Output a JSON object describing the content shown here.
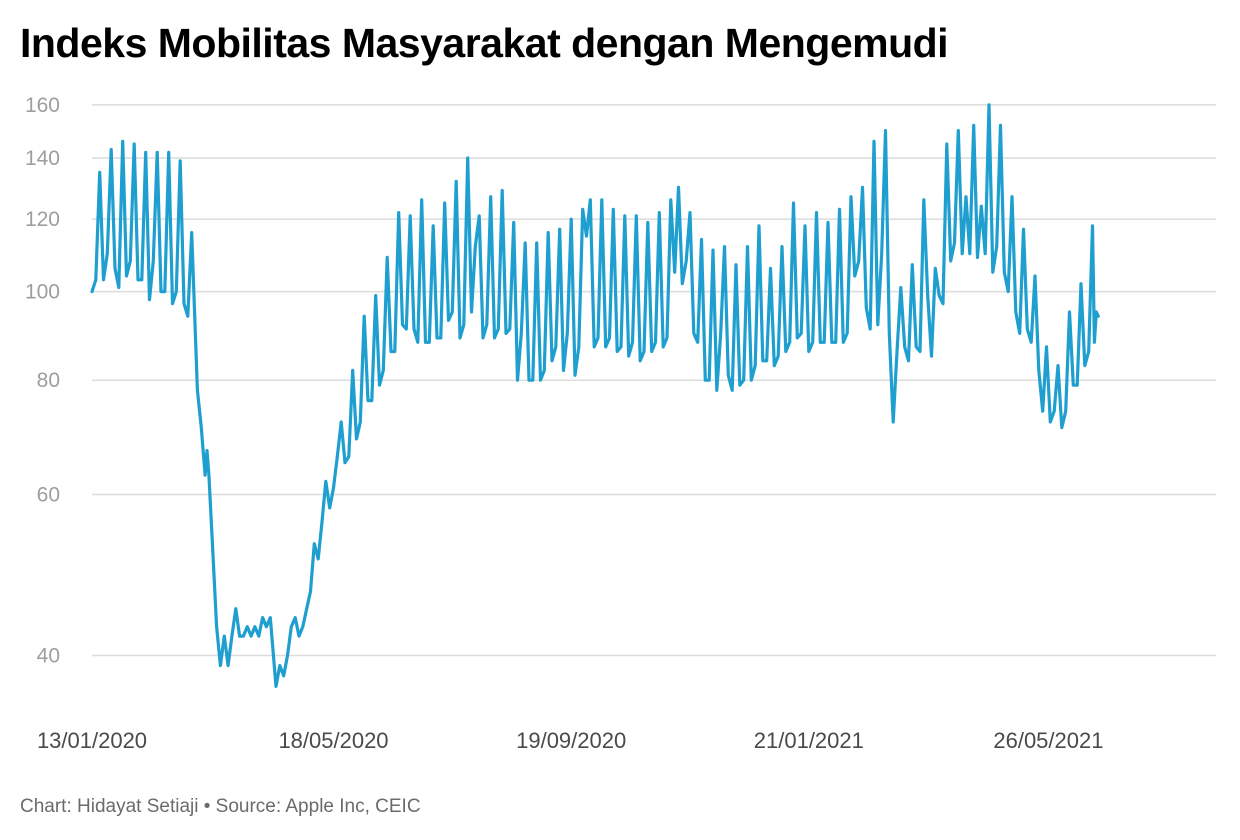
{
  "chart_data": {
    "type": "line",
    "title": "Indeks Mobilitas Masyarakat dengan Mengemudi",
    "footer": "Chart: Hidayat Setiaji • Source: Apple Inc, CEIC",
    "xlabel": "",
    "ylabel": "",
    "y_scale": "log",
    "ylim": [
      34,
      162
    ],
    "y_ticks": [
      40,
      60,
      80,
      100,
      120,
      140,
      160
    ],
    "x_range": [
      "2020-01-13",
      "2021-08-11"
    ],
    "x_ticks": [
      {
        "date": "2020-01-13",
        "label": "13/01/2020"
      },
      {
        "date": "2020-05-18",
        "label": "18/05/2020"
      },
      {
        "date": "2020-09-19",
        "label": "19/09/2020"
      },
      {
        "date": "2021-01-21",
        "label": "21/01/2021"
      },
      {
        "date": "2021-05-26",
        "label": "26/05/2021"
      }
    ],
    "grid": true,
    "legend": "none",
    "color": "#1f9fcf",
    "series": [
      {
        "name": "",
        "points": [
          [
            "2020-01-13",
            100
          ],
          [
            "2020-01-15",
            103
          ],
          [
            "2020-01-17",
            135
          ],
          [
            "2020-01-19",
            103
          ],
          [
            "2020-01-21",
            110
          ],
          [
            "2020-01-23",
            143
          ],
          [
            "2020-01-25",
            106
          ],
          [
            "2020-01-27",
            101
          ],
          [
            "2020-01-29",
            146
          ],
          [
            "2020-01-31",
            104
          ],
          [
            "2020-02-02",
            108
          ],
          [
            "2020-02-04",
            145
          ],
          [
            "2020-02-06",
            103
          ],
          [
            "2020-02-08",
            103
          ],
          [
            "2020-02-10",
            142
          ],
          [
            "2020-02-12",
            98
          ],
          [
            "2020-02-14",
            108
          ],
          [
            "2020-02-16",
            142
          ],
          [
            "2020-02-18",
            100
          ],
          [
            "2020-02-20",
            100
          ],
          [
            "2020-02-22",
            142
          ],
          [
            "2020-02-24",
            97
          ],
          [
            "2020-02-26",
            100
          ],
          [
            "2020-02-28",
            139
          ],
          [
            "2020-03-01",
            97
          ],
          [
            "2020-03-03",
            94
          ],
          [
            "2020-03-05",
            116
          ],
          [
            "2020-03-08",
            78
          ],
          [
            "2020-03-10",
            71
          ],
          [
            "2020-03-12",
            63
          ],
          [
            "2020-03-13",
            67
          ],
          [
            "2020-03-14",
            63
          ],
          [
            "2020-03-16",
            52
          ],
          [
            "2020-03-18",
            43
          ],
          [
            "2020-03-20",
            39
          ],
          [
            "2020-03-22",
            42
          ],
          [
            "2020-03-24",
            39
          ],
          [
            "2020-03-26",
            42
          ],
          [
            "2020-03-28",
            45
          ],
          [
            "2020-03-30",
            42
          ],
          [
            "2020-04-01",
            42
          ],
          [
            "2020-04-03",
            43
          ],
          [
            "2020-04-05",
            42
          ],
          [
            "2020-04-07",
            43
          ],
          [
            "2020-04-09",
            42
          ],
          [
            "2020-04-11",
            44
          ],
          [
            "2020-04-13",
            43
          ],
          [
            "2020-04-15",
            44
          ],
          [
            "2020-04-18",
            37
          ],
          [
            "2020-04-20",
            39
          ],
          [
            "2020-04-22",
            38
          ],
          [
            "2020-04-24",
            40
          ],
          [
            "2020-04-26",
            43
          ],
          [
            "2020-04-28",
            44
          ],
          [
            "2020-04-30",
            42
          ],
          [
            "2020-05-02",
            43
          ],
          [
            "2020-05-04",
            45
          ],
          [
            "2020-05-06",
            47
          ],
          [
            "2020-05-08",
            53
          ],
          [
            "2020-05-10",
            51
          ],
          [
            "2020-05-12",
            56
          ],
          [
            "2020-05-14",
            62
          ],
          [
            "2020-05-16",
            58
          ],
          [
            "2020-05-18",
            61
          ],
          [
            "2020-05-20",
            66
          ],
          [
            "2020-05-22",
            72
          ],
          [
            "2020-05-24",
            65
          ],
          [
            "2020-05-26",
            66
          ],
          [
            "2020-05-28",
            82
          ],
          [
            "2020-05-30",
            69
          ],
          [
            "2020-06-01",
            72
          ],
          [
            "2020-06-03",
            94
          ],
          [
            "2020-06-05",
            76
          ],
          [
            "2020-06-07",
            76
          ],
          [
            "2020-06-09",
            99
          ],
          [
            "2020-06-11",
            79
          ],
          [
            "2020-06-13",
            82
          ],
          [
            "2020-06-15",
            109
          ],
          [
            "2020-06-17",
            86
          ],
          [
            "2020-06-19",
            86
          ],
          [
            "2020-06-21",
            122
          ],
          [
            "2020-06-23",
            92
          ],
          [
            "2020-06-25",
            91
          ],
          [
            "2020-06-27",
            121
          ],
          [
            "2020-06-29",
            91
          ],
          [
            "2020-07-01",
            88
          ],
          [
            "2020-07-03",
            126
          ],
          [
            "2020-07-05",
            88
          ],
          [
            "2020-07-07",
            88
          ],
          [
            "2020-07-09",
            118
          ],
          [
            "2020-07-11",
            89
          ],
          [
            "2020-07-13",
            89
          ],
          [
            "2020-07-15",
            125
          ],
          [
            "2020-07-17",
            93
          ],
          [
            "2020-07-19",
            95
          ],
          [
            "2020-07-21",
            132
          ],
          [
            "2020-07-23",
            89
          ],
          [
            "2020-07-25",
            92
          ],
          [
            "2020-07-27",
            140
          ],
          [
            "2020-07-29",
            95
          ],
          [
            "2020-07-31",
            112
          ],
          [
            "2020-08-02",
            121
          ],
          [
            "2020-08-04",
            89
          ],
          [
            "2020-08-06",
            92
          ],
          [
            "2020-08-08",
            127
          ],
          [
            "2020-08-10",
            89
          ],
          [
            "2020-08-12",
            91
          ],
          [
            "2020-08-14",
            129
          ],
          [
            "2020-08-16",
            90
          ],
          [
            "2020-08-18",
            91
          ],
          [
            "2020-08-20",
            119
          ],
          [
            "2020-08-22",
            80
          ],
          [
            "2020-08-24",
            90
          ],
          [
            "2020-08-26",
            113
          ],
          [
            "2020-08-28",
            80
          ],
          [
            "2020-08-30",
            80
          ],
          [
            "2020-09-01",
            113
          ],
          [
            "2020-09-03",
            80
          ],
          [
            "2020-09-05",
            82
          ],
          [
            "2020-09-07",
            116
          ],
          [
            "2020-09-09",
            84
          ],
          [
            "2020-09-11",
            87
          ],
          [
            "2020-09-13",
            117
          ],
          [
            "2020-09-15",
            82
          ],
          [
            "2020-09-17",
            90
          ],
          [
            "2020-09-19",
            120
          ],
          [
            "2020-09-21",
            81
          ],
          [
            "2020-09-23",
            87
          ],
          [
            "2020-09-25",
            123
          ],
          [
            "2020-09-27",
            115
          ],
          [
            "2020-09-29",
            126
          ],
          [
            "2020-10-01",
            87
          ],
          [
            "2020-10-03",
            89
          ],
          [
            "2020-10-05",
            126
          ],
          [
            "2020-10-07",
            87
          ],
          [
            "2020-10-09",
            89
          ],
          [
            "2020-10-11",
            123
          ],
          [
            "2020-10-13",
            86
          ],
          [
            "2020-10-15",
            87
          ],
          [
            "2020-10-17",
            121
          ],
          [
            "2020-10-19",
            85
          ],
          [
            "2020-10-21",
            88
          ],
          [
            "2020-10-23",
            121
          ],
          [
            "2020-10-25",
            84
          ],
          [
            "2020-10-27",
            86
          ],
          [
            "2020-10-29",
            119
          ],
          [
            "2020-10-31",
            86
          ],
          [
            "2020-11-02",
            88
          ],
          [
            "2020-11-04",
            122
          ],
          [
            "2020-11-06",
            87
          ],
          [
            "2020-11-08",
            89
          ],
          [
            "2020-11-10",
            126
          ],
          [
            "2020-11-12",
            105
          ],
          [
            "2020-11-14",
            130
          ],
          [
            "2020-11-16",
            102
          ],
          [
            "2020-11-18",
            108
          ],
          [
            "2020-11-20",
            122
          ],
          [
            "2020-11-22",
            90
          ],
          [
            "2020-11-24",
            88
          ],
          [
            "2020-11-26",
            114
          ],
          [
            "2020-11-28",
            80
          ],
          [
            "2020-11-30",
            80
          ],
          [
            "2020-12-02",
            111
          ],
          [
            "2020-12-04",
            78
          ],
          [
            "2020-12-06",
            90
          ],
          [
            "2020-12-08",
            112
          ],
          [
            "2020-12-10",
            81
          ],
          [
            "2020-12-12",
            78
          ],
          [
            "2020-12-14",
            107
          ],
          [
            "2020-12-16",
            79
          ],
          [
            "2020-12-18",
            80
          ],
          [
            "2020-12-20",
            112
          ],
          [
            "2020-12-22",
            80
          ],
          [
            "2020-12-24",
            83
          ],
          [
            "2020-12-26",
            118
          ],
          [
            "2020-12-28",
            84
          ],
          [
            "2020-12-30",
            84
          ],
          [
            "2021-01-01",
            106
          ],
          [
            "2021-01-03",
            83
          ],
          [
            "2021-01-05",
            85
          ],
          [
            "2021-01-07",
            112
          ],
          [
            "2021-01-09",
            86
          ],
          [
            "2021-01-11",
            88
          ],
          [
            "2021-01-13",
            125
          ],
          [
            "2021-01-15",
            89
          ],
          [
            "2021-01-17",
            90
          ],
          [
            "2021-01-19",
            118
          ],
          [
            "2021-01-21",
            86
          ],
          [
            "2021-01-23",
            88
          ],
          [
            "2021-01-25",
            122
          ],
          [
            "2021-01-27",
            88
          ],
          [
            "2021-01-29",
            88
          ],
          [
            "2021-01-31",
            119
          ],
          [
            "2021-02-02",
            88
          ],
          [
            "2021-02-04",
            88
          ],
          [
            "2021-02-06",
            123
          ],
          [
            "2021-02-08",
            88
          ],
          [
            "2021-02-10",
            90
          ],
          [
            "2021-02-12",
            127
          ],
          [
            "2021-02-14",
            104
          ],
          [
            "2021-02-16",
            108
          ],
          [
            "2021-02-18",
            130
          ],
          [
            "2021-02-20",
            96
          ],
          [
            "2021-02-22",
            91
          ],
          [
            "2021-02-24",
            146
          ],
          [
            "2021-02-26",
            92
          ],
          [
            "2021-02-28",
            110
          ],
          [
            "2021-03-02",
            150
          ],
          [
            "2021-03-04",
            90
          ],
          [
            "2021-03-06",
            72
          ],
          [
            "2021-03-08",
            86
          ],
          [
            "2021-03-10",
            101
          ],
          [
            "2021-03-12",
            87
          ],
          [
            "2021-03-14",
            84
          ],
          [
            "2021-03-16",
            107
          ],
          [
            "2021-03-18",
            87
          ],
          [
            "2021-03-20",
            86
          ],
          [
            "2021-03-22",
            126
          ],
          [
            "2021-03-24",
            99
          ],
          [
            "2021-03-26",
            85
          ],
          [
            "2021-03-28",
            106
          ],
          [
            "2021-03-30",
            99
          ],
          [
            "2021-04-01",
            97
          ],
          [
            "2021-04-03",
            145
          ],
          [
            "2021-04-05",
            108
          ],
          [
            "2021-04-07",
            113
          ],
          [
            "2021-04-09",
            150
          ],
          [
            "2021-04-11",
            110
          ],
          [
            "2021-04-13",
            127
          ],
          [
            "2021-04-15",
            110
          ],
          [
            "2021-04-17",
            152
          ],
          [
            "2021-04-19",
            109
          ],
          [
            "2021-04-21",
            124
          ],
          [
            "2021-04-23",
            110
          ],
          [
            "2021-04-25",
            160
          ],
          [
            "2021-04-27",
            105
          ],
          [
            "2021-04-29",
            112
          ],
          [
            "2021-05-01",
            152
          ],
          [
            "2021-05-03",
            105
          ],
          [
            "2021-05-05",
            100
          ],
          [
            "2021-05-07",
            127
          ],
          [
            "2021-05-09",
            95
          ],
          [
            "2021-05-11",
            90
          ],
          [
            "2021-05-13",
            117
          ],
          [
            "2021-05-15",
            91
          ],
          [
            "2021-05-17",
            88
          ],
          [
            "2021-05-19",
            104
          ],
          [
            "2021-05-21",
            82
          ],
          [
            "2021-05-23",
            74
          ],
          [
            "2021-05-25",
            87
          ],
          [
            "2021-05-27",
            72
          ],
          [
            "2021-05-29",
            74
          ],
          [
            "2021-05-31",
            83
          ],
          [
            "2021-06-02",
            71
          ],
          [
            "2021-06-04",
            74
          ],
          [
            "2021-06-06",
            95
          ],
          [
            "2021-06-08",
            79
          ],
          [
            "2021-06-10",
            79
          ],
          [
            "2021-06-12",
            102
          ],
          [
            "2021-06-14",
            83
          ],
          [
            "2021-06-16",
            86
          ],
          [
            "2021-06-18",
            118
          ],
          [
            "2021-06-19",
            88
          ],
          [
            "2021-06-20",
            95
          ],
          [
            "2021-06-21",
            94
          ]
        ]
      }
    ]
  }
}
